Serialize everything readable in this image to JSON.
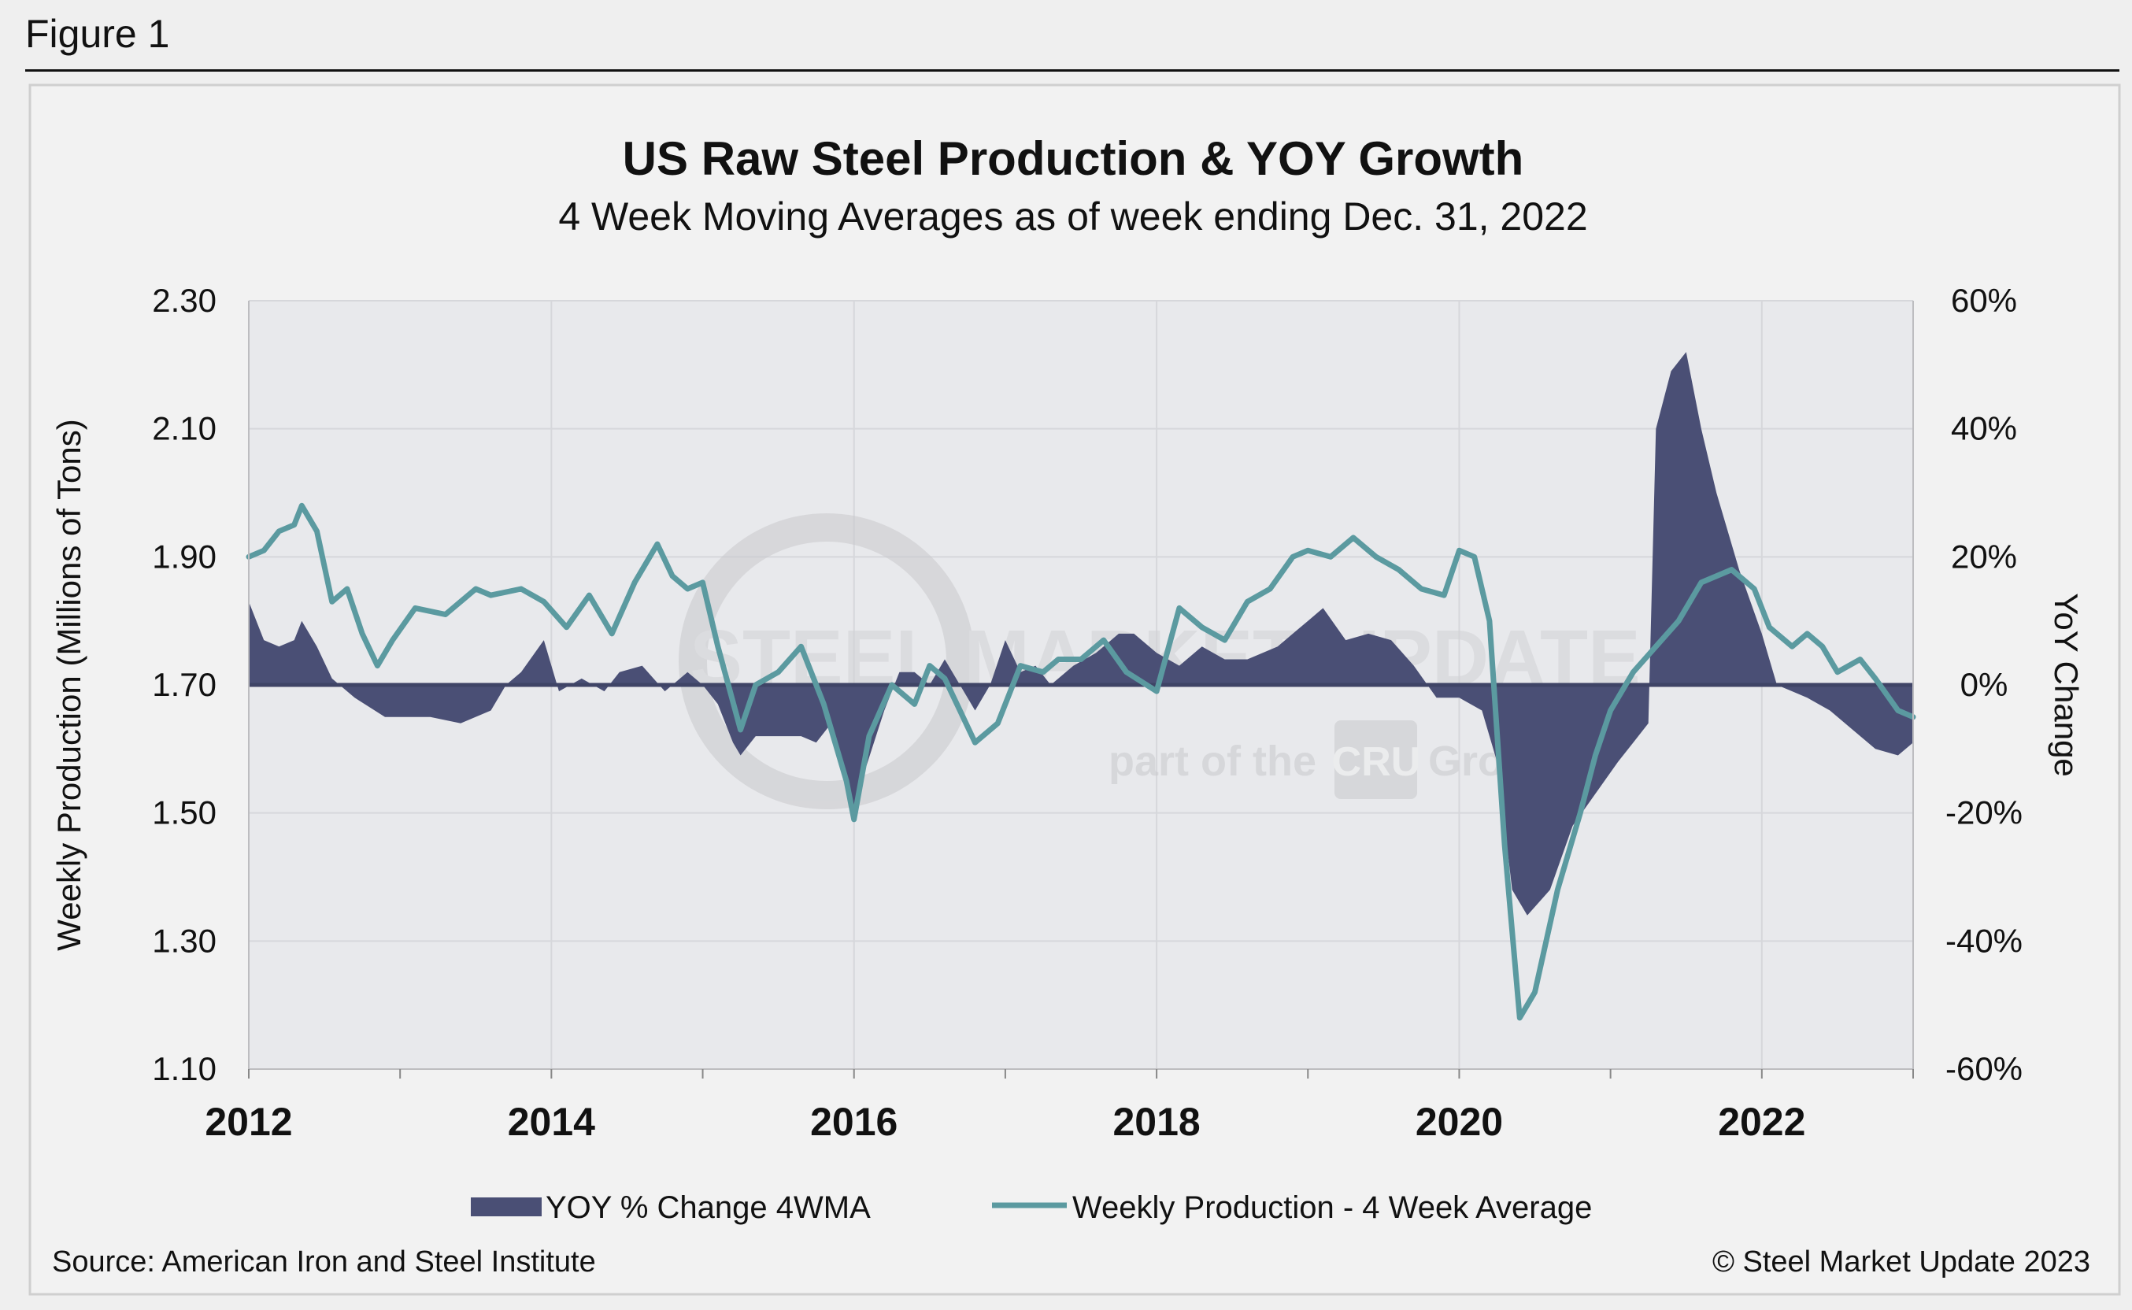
{
  "figure_label": "Figure 1",
  "chart_data": {
    "type": "area+line",
    "title": "US Raw Steel Production & YOY Growth",
    "subtitle": "4 Week Moving Averages as of week ending Dec. 31, 2022",
    "ylabel_left": "Weekly Production (Millions of Tons)",
    "ylabel_right": "YoY Change",
    "y_left_range": [
      1.1,
      2.3
    ],
    "y_left_ticks": [
      "2.30",
      "2.10",
      "1.90",
      "1.70",
      "1.50",
      "1.30",
      "1.10"
    ],
    "y_right_range": [
      -60,
      60
    ],
    "y_right_ticks": [
      "60%",
      "40%",
      "20%",
      "0%",
      "-20%",
      "-40%",
      "-60%"
    ],
    "x_range": [
      2012,
      2023
    ],
    "x_ticks": [
      "2012",
      "2014",
      "2016",
      "2018",
      "2020",
      "2022"
    ],
    "grid": "on",
    "legend_position": "bottom",
    "watermark": [
      "STEEL MARKET UPDATE",
      "part of the",
      "CRU",
      "Group"
    ],
    "source": "Source: American Iron and Steel Institute",
    "copyright": "© Steel Market Update 2023",
    "series": [
      {
        "name": "YOY % Change 4WMA",
        "kind": "area",
        "axis": "right",
        "color": "#4a4f75",
        "points": [
          [
            2012.0,
            13
          ],
          [
            2012.1,
            7
          ],
          [
            2012.2,
            6
          ],
          [
            2012.3,
            7
          ],
          [
            2012.35,
            10
          ],
          [
            2012.45,
            6
          ],
          [
            2012.55,
            1
          ],
          [
            2012.7,
            -2
          ],
          [
            2012.9,
            -5
          ],
          [
            2013.2,
            -5
          ],
          [
            2013.4,
            -6
          ],
          [
            2013.6,
            -4
          ],
          [
            2013.7,
            0
          ],
          [
            2013.8,
            2
          ],
          [
            2013.95,
            7
          ],
          [
            2014.05,
            -1
          ],
          [
            2014.2,
            1
          ],
          [
            2014.35,
            -1
          ],
          [
            2014.45,
            2
          ],
          [
            2014.6,
            3
          ],
          [
            2014.75,
            -1
          ],
          [
            2014.9,
            2
          ],
          [
            2015.0,
            0
          ],
          [
            2015.1,
            -3
          ],
          [
            2015.2,
            -9
          ],
          [
            2015.25,
            -11
          ],
          [
            2015.35,
            -8
          ],
          [
            2015.5,
            -8
          ],
          [
            2015.65,
            -8
          ],
          [
            2015.75,
            -9
          ],
          [
            2015.85,
            -6
          ],
          [
            2016.0,
            -19
          ],
          [
            2016.05,
            -15
          ],
          [
            2016.2,
            -4
          ],
          [
            2016.3,
            2
          ],
          [
            2016.4,
            2
          ],
          [
            2016.5,
            0
          ],
          [
            2016.6,
            4
          ],
          [
            2016.7,
            0
          ],
          [
            2016.8,
            -4
          ],
          [
            2016.9,
            0
          ],
          [
            2017.0,
            7
          ],
          [
            2017.1,
            2
          ],
          [
            2017.2,
            3
          ],
          [
            2017.3,
            0
          ],
          [
            2017.45,
            3
          ],
          [
            2017.6,
            5
          ],
          [
            2017.75,
            8
          ],
          [
            2017.85,
            8
          ],
          [
            2018.0,
            5
          ],
          [
            2018.15,
            3
          ],
          [
            2018.3,
            6
          ],
          [
            2018.45,
            4
          ],
          [
            2018.6,
            4
          ],
          [
            2018.8,
            6
          ],
          [
            2019.0,
            10
          ],
          [
            2019.1,
            12
          ],
          [
            2019.25,
            7
          ],
          [
            2019.4,
            8
          ],
          [
            2019.55,
            7
          ],
          [
            2019.7,
            3
          ],
          [
            2019.85,
            -2
          ],
          [
            2020.0,
            -2
          ],
          [
            2020.15,
            -4
          ],
          [
            2020.25,
            -12
          ],
          [
            2020.35,
            -32
          ],
          [
            2020.45,
            -36
          ],
          [
            2020.6,
            -32
          ],
          [
            2020.75,
            -22
          ],
          [
            2020.9,
            -17
          ],
          [
            2021.05,
            -12
          ],
          [
            2021.15,
            -9
          ],
          [
            2021.25,
            -6
          ],
          [
            2021.3,
            40
          ],
          [
            2021.4,
            49
          ],
          [
            2021.5,
            52
          ],
          [
            2021.6,
            40
          ],
          [
            2021.7,
            30
          ],
          [
            2021.85,
            18
          ],
          [
            2022.0,
            8
          ],
          [
            2022.1,
            0
          ],
          [
            2022.2,
            -1
          ],
          [
            2022.3,
            -2
          ],
          [
            2022.45,
            -4
          ],
          [
            2022.6,
            -7
          ],
          [
            2022.75,
            -10
          ],
          [
            2022.9,
            -11
          ],
          [
            2023.0,
            -9
          ]
        ]
      },
      {
        "name": "Weekly Production - 4 Week Average",
        "kind": "line",
        "axis": "left",
        "color": "#5b9aa0",
        "points": [
          [
            2012.0,
            1.9
          ],
          [
            2012.1,
            1.91
          ],
          [
            2012.2,
            1.94
          ],
          [
            2012.3,
            1.95
          ],
          [
            2012.35,
            1.98
          ],
          [
            2012.45,
            1.94
          ],
          [
            2012.55,
            1.83
          ],
          [
            2012.65,
            1.85
          ],
          [
            2012.75,
            1.78
          ],
          [
            2012.85,
            1.73
          ],
          [
            2012.95,
            1.77
          ],
          [
            2013.1,
            1.82
          ],
          [
            2013.3,
            1.81
          ],
          [
            2013.5,
            1.85
          ],
          [
            2013.6,
            1.84
          ],
          [
            2013.8,
            1.85
          ],
          [
            2013.95,
            1.83
          ],
          [
            2014.1,
            1.79
          ],
          [
            2014.25,
            1.84
          ],
          [
            2014.4,
            1.78
          ],
          [
            2014.55,
            1.86
          ],
          [
            2014.7,
            1.92
          ],
          [
            2014.8,
            1.87
          ],
          [
            2014.9,
            1.85
          ],
          [
            2015.0,
            1.86
          ],
          [
            2015.1,
            1.76
          ],
          [
            2015.25,
            1.63
          ],
          [
            2015.35,
            1.7
          ],
          [
            2015.5,
            1.72
          ],
          [
            2015.65,
            1.76
          ],
          [
            2015.8,
            1.67
          ],
          [
            2015.95,
            1.55
          ],
          [
            2016.0,
            1.49
          ],
          [
            2016.1,
            1.62
          ],
          [
            2016.25,
            1.7
          ],
          [
            2016.4,
            1.67
          ],
          [
            2016.5,
            1.73
          ],
          [
            2016.6,
            1.71
          ],
          [
            2016.7,
            1.66
          ],
          [
            2016.8,
            1.61
          ],
          [
            2016.95,
            1.64
          ],
          [
            2017.1,
            1.73
          ],
          [
            2017.25,
            1.72
          ],
          [
            2017.35,
            1.74
          ],
          [
            2017.5,
            1.74
          ],
          [
            2017.65,
            1.77
          ],
          [
            2017.8,
            1.72
          ],
          [
            2018.0,
            1.69
          ],
          [
            2018.15,
            1.82
          ],
          [
            2018.3,
            1.79
          ],
          [
            2018.45,
            1.77
          ],
          [
            2018.6,
            1.83
          ],
          [
            2018.75,
            1.85
          ],
          [
            2018.9,
            1.9
          ],
          [
            2019.0,
            1.91
          ],
          [
            2019.15,
            1.9
          ],
          [
            2019.3,
            1.93
          ],
          [
            2019.45,
            1.9
          ],
          [
            2019.6,
            1.88
          ],
          [
            2019.75,
            1.85
          ],
          [
            2019.9,
            1.84
          ],
          [
            2020.0,
            1.91
          ],
          [
            2020.1,
            1.9
          ],
          [
            2020.2,
            1.8
          ],
          [
            2020.3,
            1.45
          ],
          [
            2020.4,
            1.18
          ],
          [
            2020.5,
            1.22
          ],
          [
            2020.65,
            1.38
          ],
          [
            2020.8,
            1.5
          ],
          [
            2020.9,
            1.59
          ],
          [
            2021.0,
            1.66
          ],
          [
            2021.15,
            1.72
          ],
          [
            2021.3,
            1.76
          ],
          [
            2021.45,
            1.8
          ],
          [
            2021.6,
            1.86
          ],
          [
            2021.8,
            1.88
          ],
          [
            2021.95,
            1.85
          ],
          [
            2022.05,
            1.79
          ],
          [
            2022.2,
            1.76
          ],
          [
            2022.3,
            1.78
          ],
          [
            2022.4,
            1.76
          ],
          [
            2022.5,
            1.72
          ],
          [
            2022.65,
            1.74
          ],
          [
            2022.75,
            1.71
          ],
          [
            2022.9,
            1.66
          ],
          [
            2023.0,
            1.65
          ]
        ]
      }
    ]
  }
}
